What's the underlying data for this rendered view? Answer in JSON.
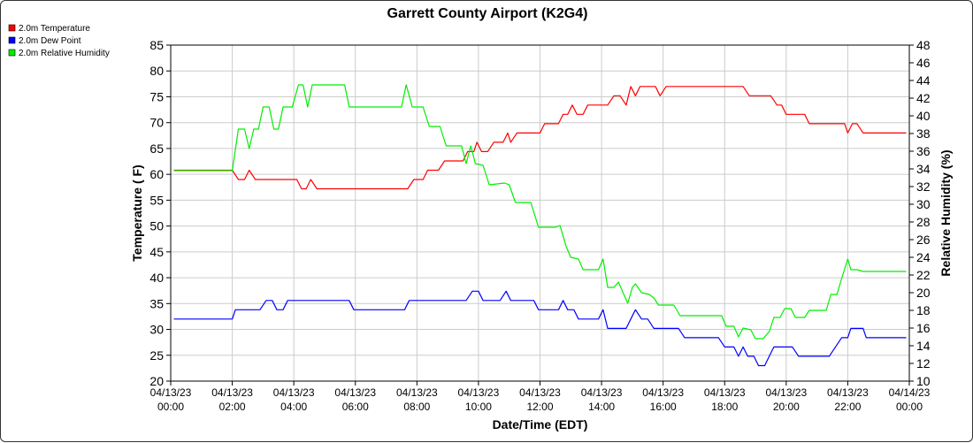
{
  "chart_data": {
    "type": "line",
    "title": "Garrett County Airport (K2G4)",
    "xlabel": "Date/Time (EDT)",
    "ylabel_left": "Temperature ( F)",
    "ylabel_right": "Relative Humidity (%)",
    "xlim_hours": [
      0,
      24
    ],
    "ylim_left": [
      20,
      85
    ],
    "ylim_right": [
      10,
      48
    ],
    "left_ticks": [
      20,
      25,
      30,
      35,
      40,
      45,
      50,
      55,
      60,
      65,
      70,
      75,
      80,
      85
    ],
    "right_ticks": [
      10,
      12,
      14,
      16,
      18,
      20,
      22,
      24,
      26,
      28,
      30,
      32,
      34,
      36,
      38,
      40,
      42,
      44,
      46,
      48
    ],
    "x_ticks": [
      {
        "hour": 0,
        "date": "04/13/23",
        "time": "00:00"
      },
      {
        "hour": 2,
        "date": "04/13/23",
        "time": "02:00"
      },
      {
        "hour": 4,
        "date": "04/13/23",
        "time": "04:00"
      },
      {
        "hour": 6,
        "date": "04/13/23",
        "time": "06:00"
      },
      {
        "hour": 8,
        "date": "04/13/23",
        "time": "08:00"
      },
      {
        "hour": 10,
        "date": "04/13/23",
        "time": "10:00"
      },
      {
        "hour": 12,
        "date": "04/13/23",
        "time": "12:00"
      },
      {
        "hour": 14,
        "date": "04/13/23",
        "time": "14:00"
      },
      {
        "hour": 16,
        "date": "04/13/23",
        "time": "16:00"
      },
      {
        "hour": 18,
        "date": "04/13/23",
        "time": "18:00"
      },
      {
        "hour": 20,
        "date": "04/13/23",
        "time": "20:00"
      },
      {
        "hour": 22,
        "date": "04/13/23",
        "time": "22:00"
      },
      {
        "hour": 24,
        "date": "04/14/23",
        "time": "00:00"
      }
    ],
    "grid": true,
    "legend_position": "top-left",
    "series": [
      {
        "name": "2.0m Temperature",
        "color": "#ff0000",
        "axis": "left",
        "points": [
          [
            0.1,
            60.8
          ],
          [
            2.0,
            60.8
          ],
          [
            2.2,
            59.0
          ],
          [
            2.4,
            59.0
          ],
          [
            2.55,
            60.8
          ],
          [
            2.75,
            59.0
          ],
          [
            4.1,
            59.0
          ],
          [
            4.25,
            57.2
          ],
          [
            4.4,
            57.2
          ],
          [
            4.55,
            59.0
          ],
          [
            4.75,
            57.2
          ],
          [
            7.7,
            57.2
          ],
          [
            7.9,
            59.0
          ],
          [
            8.2,
            59.0
          ],
          [
            8.35,
            60.8
          ],
          [
            8.7,
            60.8
          ],
          [
            8.9,
            62.6
          ],
          [
            9.5,
            62.6
          ],
          [
            9.65,
            64.4
          ],
          [
            9.85,
            64.4
          ],
          [
            9.95,
            66.2
          ],
          [
            10.1,
            64.4
          ],
          [
            10.3,
            64.4
          ],
          [
            10.5,
            66.2
          ],
          [
            10.8,
            66.2
          ],
          [
            10.95,
            68.0
          ],
          [
            11.05,
            66.2
          ],
          [
            11.25,
            68.0
          ],
          [
            12.0,
            68.0
          ],
          [
            12.15,
            69.8
          ],
          [
            12.6,
            69.8
          ],
          [
            12.75,
            71.6
          ],
          [
            12.9,
            71.6
          ],
          [
            13.05,
            73.4
          ],
          [
            13.2,
            71.6
          ],
          [
            13.4,
            71.6
          ],
          [
            13.55,
            73.4
          ],
          [
            14.2,
            73.4
          ],
          [
            14.4,
            75.2
          ],
          [
            14.6,
            75.2
          ],
          [
            14.8,
            73.4
          ],
          [
            14.95,
            77.0
          ],
          [
            15.1,
            75.2
          ],
          [
            15.25,
            77.0
          ],
          [
            15.75,
            77.0
          ],
          [
            15.9,
            75.2
          ],
          [
            16.1,
            77.0
          ],
          [
            18.6,
            77.0
          ],
          [
            18.8,
            75.2
          ],
          [
            19.5,
            75.2
          ],
          [
            19.7,
            73.4
          ],
          [
            19.85,
            73.4
          ],
          [
            20.0,
            71.6
          ],
          [
            20.6,
            71.6
          ],
          [
            20.75,
            69.8
          ],
          [
            21.9,
            69.8
          ],
          [
            22.0,
            68.0
          ],
          [
            22.15,
            69.8
          ],
          [
            22.3,
            69.8
          ],
          [
            22.5,
            68.0
          ],
          [
            23.9,
            68.0
          ]
        ]
      },
      {
        "name": "2.0m Dew Point",
        "color": "#0000ff",
        "axis": "left",
        "points": [
          [
            0.1,
            32.0
          ],
          [
            2.0,
            32.0
          ],
          [
            2.1,
            33.8
          ],
          [
            2.9,
            33.8
          ],
          [
            3.1,
            35.6
          ],
          [
            3.3,
            35.6
          ],
          [
            3.45,
            33.8
          ],
          [
            3.65,
            33.8
          ],
          [
            3.8,
            35.6
          ],
          [
            5.8,
            35.6
          ],
          [
            5.95,
            33.8
          ],
          [
            7.6,
            33.8
          ],
          [
            7.75,
            35.6
          ],
          [
            9.6,
            35.6
          ],
          [
            9.8,
            37.4
          ],
          [
            10.0,
            37.4
          ],
          [
            10.15,
            35.6
          ],
          [
            10.7,
            35.6
          ],
          [
            10.9,
            37.4
          ],
          [
            11.05,
            35.6
          ],
          [
            11.8,
            35.6
          ],
          [
            11.95,
            33.8
          ],
          [
            12.6,
            33.8
          ],
          [
            12.75,
            35.6
          ],
          [
            12.9,
            33.8
          ],
          [
            13.1,
            33.8
          ],
          [
            13.25,
            32.0
          ],
          [
            13.9,
            32.0
          ],
          [
            14.05,
            33.8
          ],
          [
            14.2,
            30.2
          ],
          [
            14.8,
            30.2
          ],
          [
            14.95,
            32.0
          ],
          [
            15.1,
            33.8
          ],
          [
            15.3,
            32.0
          ],
          [
            15.5,
            32.0
          ],
          [
            15.7,
            30.2
          ],
          [
            16.5,
            30.2
          ],
          [
            16.7,
            28.4
          ],
          [
            17.8,
            28.4
          ],
          [
            18.0,
            26.6
          ],
          [
            18.3,
            26.6
          ],
          [
            18.45,
            24.8
          ],
          [
            18.6,
            26.6
          ],
          [
            18.75,
            24.8
          ],
          [
            18.95,
            24.8
          ],
          [
            19.1,
            23.0
          ],
          [
            19.3,
            23.0
          ],
          [
            19.45,
            24.8
          ],
          [
            19.6,
            26.6
          ],
          [
            20.2,
            26.6
          ],
          [
            20.4,
            24.8
          ],
          [
            21.4,
            24.8
          ],
          [
            21.6,
            26.6
          ],
          [
            21.8,
            28.4
          ],
          [
            22.0,
            28.4
          ],
          [
            22.1,
            30.2
          ],
          [
            22.5,
            30.2
          ],
          [
            22.6,
            28.4
          ],
          [
            23.9,
            28.4
          ]
        ]
      },
      {
        "name": "2.0m Relative Humidity",
        "color": "#00ee00",
        "axis": "right",
        "points": [
          [
            0.1,
            33.8
          ],
          [
            2.0,
            33.8
          ],
          [
            2.2,
            38.5
          ],
          [
            2.4,
            38.5
          ],
          [
            2.55,
            36.3
          ],
          [
            2.7,
            38.5
          ],
          [
            2.85,
            38.5
          ],
          [
            3.0,
            41.0
          ],
          [
            3.2,
            41.0
          ],
          [
            3.35,
            38.5
          ],
          [
            3.5,
            38.5
          ],
          [
            3.65,
            41.0
          ],
          [
            3.95,
            41.0
          ],
          [
            4.15,
            43.5
          ],
          [
            4.3,
            43.5
          ],
          [
            4.45,
            41.0
          ],
          [
            4.6,
            43.5
          ],
          [
            5.65,
            43.5
          ],
          [
            5.8,
            41.0
          ],
          [
            7.5,
            41.0
          ],
          [
            7.65,
            43.5
          ],
          [
            7.85,
            41.0
          ],
          [
            8.2,
            41.0
          ],
          [
            8.4,
            38.8
          ],
          [
            8.75,
            38.8
          ],
          [
            8.95,
            36.6
          ],
          [
            9.45,
            36.6
          ],
          [
            9.6,
            34.6
          ],
          [
            9.75,
            36.6
          ],
          [
            9.9,
            34.6
          ],
          [
            10.15,
            34.4
          ],
          [
            10.35,
            32.2
          ],
          [
            10.85,
            32.4
          ],
          [
            11.0,
            32.2
          ],
          [
            11.2,
            30.2
          ],
          [
            11.7,
            30.2
          ],
          [
            11.95,
            27.4
          ],
          [
            12.5,
            27.4
          ],
          [
            12.65,
            27.6
          ],
          [
            12.85,
            25.2
          ],
          [
            13.0,
            24.0
          ],
          [
            13.25,
            23.8
          ],
          [
            13.4,
            22.6
          ],
          [
            13.9,
            22.6
          ],
          [
            14.05,
            23.8
          ],
          [
            14.2,
            20.6
          ],
          [
            14.4,
            20.6
          ],
          [
            14.55,
            21.2
          ],
          [
            14.7,
            20.0
          ],
          [
            14.85,
            18.8
          ],
          [
            15.0,
            20.6
          ],
          [
            15.1,
            21.0
          ],
          [
            15.3,
            20.0
          ],
          [
            15.55,
            19.8
          ],
          [
            15.7,
            19.4
          ],
          [
            15.85,
            18.6
          ],
          [
            16.35,
            18.6
          ],
          [
            16.55,
            17.4
          ],
          [
            17.9,
            17.4
          ],
          [
            18.05,
            16.2
          ],
          [
            18.3,
            16.2
          ],
          [
            18.45,
            15.0
          ],
          [
            18.6,
            16.0
          ],
          [
            18.85,
            15.8
          ],
          [
            19.0,
            14.8
          ],
          [
            19.25,
            14.8
          ],
          [
            19.45,
            15.6
          ],
          [
            19.6,
            17.2
          ],
          [
            19.8,
            17.2
          ],
          [
            19.95,
            18.2
          ],
          [
            20.15,
            18.2
          ],
          [
            20.3,
            17.2
          ],
          [
            20.6,
            17.2
          ],
          [
            20.75,
            18.0
          ],
          [
            21.3,
            18.0
          ],
          [
            21.45,
            19.8
          ],
          [
            21.65,
            19.8
          ],
          [
            21.8,
            21.6
          ],
          [
            22.0,
            23.8
          ],
          [
            22.1,
            22.6
          ],
          [
            22.3,
            22.6
          ],
          [
            22.5,
            22.4
          ],
          [
            23.9,
            22.4
          ]
        ]
      }
    ]
  }
}
